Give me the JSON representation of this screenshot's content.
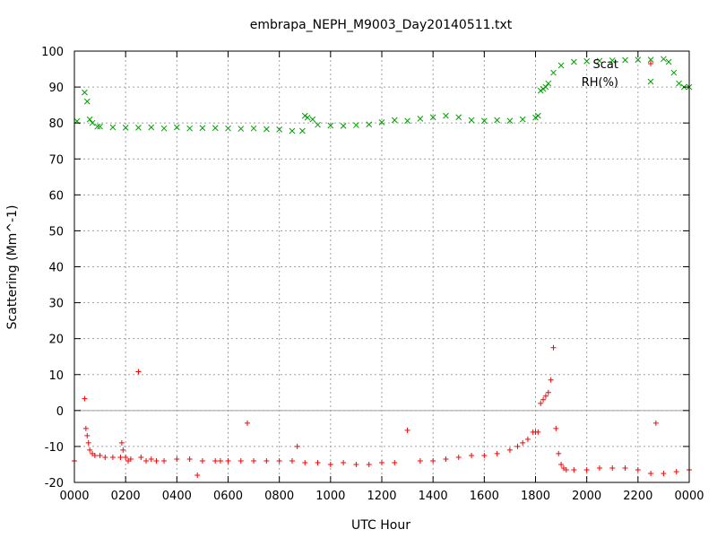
{
  "chart_data": {
    "type": "scatter",
    "title": "embrapa_NEPH_M9003_Day20140511.txt",
    "xlabel": "UTC Hour",
    "ylabel": "Scattering (Mm^-1)",
    "xlim": [
      0,
      24
    ],
    "ylim": [
      -20,
      100
    ],
    "xticks": [
      {
        "v": 0,
        "label": "0000"
      },
      {
        "v": 2,
        "label": "0200"
      },
      {
        "v": 4,
        "label": "0400"
      },
      {
        "v": 6,
        "label": "0600"
      },
      {
        "v": 8,
        "label": "0800"
      },
      {
        "v": 10,
        "label": "1000"
      },
      {
        "v": 12,
        "label": "1200"
      },
      {
        "v": 14,
        "label": "1400"
      },
      {
        "v": 16,
        "label": "1600"
      },
      {
        "v": 18,
        "label": "1800"
      },
      {
        "v": 20,
        "label": "2000"
      },
      {
        "v": 22,
        "label": "2200"
      },
      {
        "v": 24,
        "label": "0000"
      }
    ],
    "yticks": [
      -20,
      -10,
      0,
      10,
      20,
      30,
      40,
      50,
      60,
      70,
      80,
      90,
      100
    ],
    "grid": true,
    "zero_line": true,
    "legend_position": "top-right",
    "series": [
      {
        "name": "Scat",
        "marker": "+",
        "color": "#ff0000",
        "x": [
          0.0,
          0.4,
          0.45,
          0.5,
          0.55,
          0.6,
          0.7,
          0.8,
          1.0,
          1.2,
          1.5,
          1.8,
          1.85,
          1.9,
          2.0,
          2.1,
          2.2,
          2.5,
          2.6,
          2.8,
          3.0,
          3.2,
          3.5,
          4.0,
          4.5,
          4.8,
          5.0,
          5.5,
          5.7,
          6.0,
          6.5,
          6.75,
          7.0,
          7.5,
          8.0,
          8.5,
          8.7,
          9.0,
          9.5,
          10.0,
          10.5,
          11.0,
          11.5,
          12.0,
          12.5,
          13.0,
          13.5,
          14.0,
          14.5,
          15.0,
          15.5,
          16.0,
          16.5,
          17.0,
          17.3,
          17.5,
          17.7,
          17.9,
          18.0,
          18.1,
          18.2,
          18.3,
          18.4,
          18.5,
          18.6,
          18.7,
          18.8,
          18.9,
          19.0,
          19.1,
          19.2,
          19.5,
          20.0,
          20.5,
          21.0,
          21.5,
          22.0,
          22.5,
          22.7,
          23.0,
          23.5,
          24.0
        ],
        "y": [
          -14,
          3.3,
          -5,
          -7,
          -9,
          -11,
          -12,
          -12.5,
          -12.5,
          -13,
          -13,
          -13,
          -9,
          -11,
          -13,
          -14,
          -13.5,
          10.8,
          -13,
          -14,
          -13.5,
          -14,
          -14,
          -13.5,
          -13.5,
          -18,
          -14,
          -14,
          -14,
          -14,
          -14,
          -3.5,
          -14,
          -14,
          -14,
          -14,
          -10,
          -14.5,
          -14.5,
          -15,
          -14.5,
          -15,
          -15,
          -14.5,
          -14.5,
          -5.5,
          -14,
          -14,
          -13.5,
          -13,
          -12.5,
          -12.5,
          -12,
          -11,
          -10,
          -9,
          -8,
          -6,
          -6,
          -6,
          2,
          3,
          4,
          5,
          8.5,
          17.5,
          -5,
          -12,
          -15,
          -16,
          -16.5,
          -16.5,
          -16.5,
          -16,
          -16,
          -16,
          -16.5,
          -17.5,
          -3.5,
          -17.5,
          -17,
          -16.5
        ]
      },
      {
        "name": "RH(%)",
        "marker": "x",
        "color": "#00a000",
        "x": [
          0.1,
          0.4,
          0.5,
          0.6,
          0.7,
          0.9,
          1.0,
          1.5,
          2.0,
          2.5,
          3.0,
          3.5,
          4.0,
          4.5,
          5.0,
          5.5,
          6.0,
          6.5,
          7.0,
          7.5,
          8.0,
          8.5,
          8.9,
          9.0,
          9.1,
          9.3,
          9.5,
          10.0,
          10.5,
          11.0,
          11.5,
          12.0,
          12.5,
          13.0,
          13.5,
          14.0,
          14.5,
          15.0,
          15.5,
          16.0,
          16.5,
          17.0,
          17.5,
          18.0,
          18.1,
          18.2,
          18.3,
          18.4,
          18.5,
          18.7,
          19.0,
          19.5,
          20.0,
          20.5,
          21.0,
          21.5,
          22.0,
          22.5,
          23.0,
          23.2,
          23.4,
          23.6,
          23.8,
          24.0
        ],
        "y": [
          80.5,
          88.5,
          86,
          81,
          80,
          79,
          79,
          78.8,
          78.7,
          78.7,
          78.8,
          78.5,
          78.8,
          78.5,
          78.6,
          78.6,
          78.5,
          78.4,
          78.5,
          78.3,
          78.2,
          77.8,
          77.8,
          82,
          81.5,
          81,
          79.5,
          79.3,
          79.2,
          79.4,
          79.6,
          80.2,
          80.8,
          80.6,
          81.2,
          81.6,
          82,
          81.6,
          80.8,
          80.6,
          80.8,
          80.6,
          81,
          81.5,
          82,
          89,
          89.5,
          90,
          91,
          94,
          96,
          97,
          97.2,
          97.3,
          97.4,
          97.5,
          97.6,
          97.6,
          97.8,
          97,
          94,
          91,
          90,
          90
        ]
      }
    ]
  }
}
